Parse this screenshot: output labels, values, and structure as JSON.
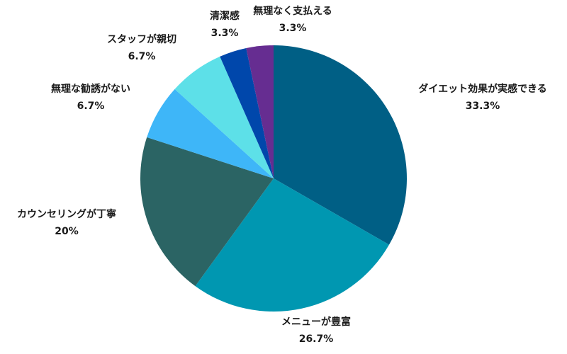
{
  "chart_data": {
    "type": "pie",
    "title": "",
    "slices": [
      {
        "label": "ダイエット効果が実感できる",
        "value": 33.3,
        "value_label": "33.3%",
        "color": "#005f85"
      },
      {
        "label": "メニューが豊富",
        "value": 26.7,
        "value_label": "26.7%",
        "color": "#0097b1"
      },
      {
        "label": "カウンセリングが丁寧",
        "value": 20,
        "value_label": "20%",
        "color": "#2b6464"
      },
      {
        "label": "無理な勧誘がない",
        "value": 6.7,
        "value_label": "6.7%",
        "color": "#3eb6f8"
      },
      {
        "label": "スタッフが親切",
        "value": 6.7,
        "value_label": "6.7%",
        "color": "#5de0e8"
      },
      {
        "label": "清潔感",
        "value": 3.3,
        "value_label": "3.3%",
        "color": "#0047ab"
      },
      {
        "label": "無理なく支払える",
        "value": 3.3,
        "value_label": "3.3%",
        "color": "#662d91"
      }
    ]
  }
}
